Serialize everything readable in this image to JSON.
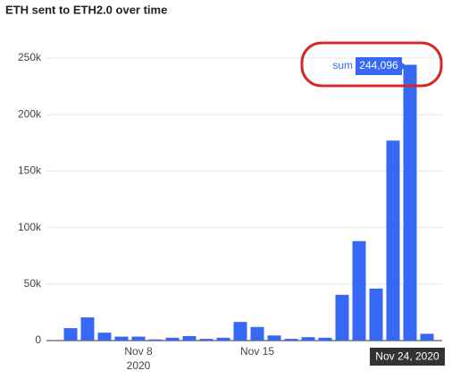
{
  "chart_data": {
    "type": "bar",
    "title": "ETH sent to ETH2.0 over time",
    "categories": [
      null,
      null,
      null,
      null,
      "Nov 8",
      null,
      null,
      null,
      null,
      null,
      null,
      "Nov 15",
      null,
      null,
      null,
      null,
      null,
      null,
      null,
      null,
      "Nov 24, 2020",
      null
    ],
    "x_year": "2020",
    "values": [
      11000,
      20500,
      7000,
      3500,
      3500,
      1000,
      2500,
      4000,
      1500,
      2500,
      16500,
      12000,
      4500,
      1500,
      3000,
      2500,
      40500,
      88000,
      46000,
      177000,
      244096,
      6000
    ],
    "value_labels": [
      null,
      null,
      null,
      null,
      null,
      null,
      null,
      null,
      null,
      null,
      null,
      null,
      null,
      null,
      null,
      null,
      null,
      null,
      null,
      null,
      "244,096",
      null
    ],
    "tooltip_label": "sum",
    "color": "#3668f5",
    "ylim": [
      0,
      250000
    ],
    "yticks": [
      0,
      {
        "value": 50000,
        "label": "50k"
      },
      {
        "value": 100000,
        "label": "100k"
      },
      {
        "value": 150000,
        "label": "150k"
      },
      {
        "value": 200000,
        "label": "200k"
      },
      {
        "value": 250000,
        "label": "250k"
      }
    ],
    "grid": true
  }
}
